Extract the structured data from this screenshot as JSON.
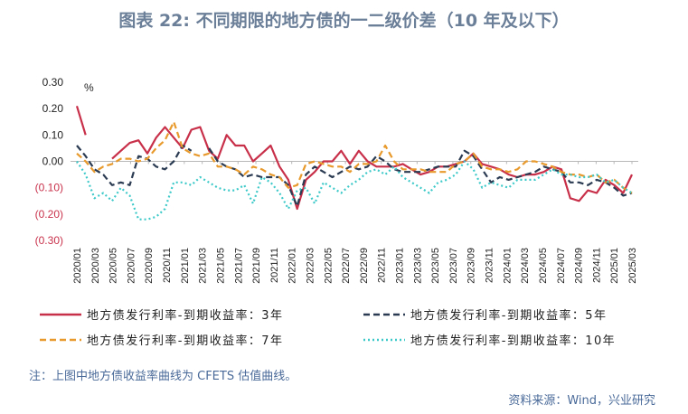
{
  "title": "图表 22: 不同期限的地方债的一二级价差（10 年及以下）",
  "note": "注：上图中地方债收益率曲线为 CFETS 估值曲线。",
  "source": "资料来源：Wind，兴业研究",
  "chart_data": {
    "type": "line",
    "unit": "%",
    "ylim": [
      -0.3,
      0.3
    ],
    "yticks": [
      0.3,
      0.2,
      0.1,
      0.0,
      -0.1,
      -0.2,
      -0.3
    ],
    "ytick_labels": [
      "0.30",
      "0.20",
      "0.10",
      "0.00",
      "(0.10)",
      "(0.20)",
      "(0.30)"
    ],
    "xtick_labels": [
      "2020/01",
      "2020/03",
      "2020/05",
      "2020/07",
      "2020/09",
      "2020/11",
      "2021/01",
      "2021/03",
      "2021/05",
      "2021/07",
      "2021/09",
      "2021/11",
      "2022/01",
      "2022/03",
      "2022/05",
      "2022/07",
      "2022/09",
      "2022/11",
      "2023/01",
      "2023/03",
      "2023/05",
      "2023/07",
      "2023/09",
      "2023/11",
      "2024/01",
      "2024/03",
      "2024/05",
      "2024/07",
      "2024/09",
      "2024/11",
      "2025/01",
      "2025/03"
    ],
    "legend_position": "bottom",
    "series": [
      {
        "name": "地方债发行利率-到期收益率：3年",
        "color": "#c8304a",
        "dash": "solid",
        "values": [
          0.21,
          0.1,
          null,
          null,
          0.01,
          0.04,
          0.07,
          0.08,
          0.03,
          0.09,
          0.13,
          0.09,
          0.05,
          0.12,
          0.13,
          0.04,
          0.01,
          0.1,
          0.06,
          0.06,
          0.0,
          0.03,
          0.06,
          -0.02,
          -0.07,
          -0.18,
          -0.07,
          -0.04,
          0.0,
          0.0,
          0.04,
          -0.01,
          0.04,
          0.0,
          -0.02,
          -0.02,
          -0.02,
          -0.01,
          -0.03,
          -0.05,
          -0.04,
          -0.02,
          -0.02,
          -0.01,
          0.0,
          0.03,
          -0.01,
          -0.02,
          -0.03,
          -0.05,
          -0.06,
          -0.05,
          -0.05,
          -0.04,
          -0.02,
          -0.03,
          -0.14,
          -0.15,
          -0.11,
          -0.12,
          -0.07,
          -0.09,
          -0.12,
          -0.05
        ]
      },
      {
        "name": "地方债发行利率-到期收益率：5年",
        "color": "#2b3b52",
        "dash": "dash",
        "values": [
          0.06,
          0.02,
          -0.03,
          -0.05,
          -0.09,
          -0.08,
          -0.09,
          0.02,
          0.01,
          -0.02,
          -0.03,
          0.0,
          0.06,
          0.04,
          null,
          0.05,
          0.0,
          -0.02,
          -0.03,
          -0.06,
          -0.05,
          -0.06,
          -0.06,
          -0.06,
          -0.09,
          -0.17,
          -0.05,
          -0.02,
          -0.04,
          -0.06,
          -0.04,
          -0.02,
          -0.03,
          -0.02,
          0.02,
          0.0,
          -0.03,
          -0.04,
          -0.04,
          -0.04,
          -0.03,
          -0.02,
          -0.02,
          -0.02,
          0.04,
          0.02,
          -0.03,
          -0.08,
          -0.06,
          -0.07,
          -0.06,
          -0.05,
          -0.04,
          -0.02,
          -0.03,
          -0.04,
          -0.08,
          -0.08,
          -0.09,
          -0.07,
          -0.08,
          -0.1,
          -0.13,
          -0.12
        ]
      },
      {
        "name": "地方债发行利率-到期收益率：7年",
        "color": "#e89a2c",
        "dash": "dash",
        "values": [
          0.03,
          0.0,
          -0.04,
          -0.02,
          -0.01,
          0.01,
          0.01,
          0.0,
          0.01,
          0.05,
          0.08,
          0.15,
          0.05,
          0.03,
          0.02,
          0.03,
          -0.02,
          -0.02,
          -0.03,
          -0.05,
          -0.02,
          -0.03,
          -0.05,
          -0.06,
          -0.1,
          -0.09,
          -0.01,
          0.0,
          -0.01,
          -0.02,
          -0.02,
          -0.04,
          -0.01,
          -0.01,
          0.0,
          0.06,
          0.0,
          -0.03,
          -0.03,
          -0.03,
          -0.04,
          -0.04,
          -0.04,
          -0.01,
          0.0,
          0.03,
          -0.02,
          -0.03,
          -0.03,
          -0.04,
          -0.03,
          0.0,
          0.0,
          -0.01,
          -0.02,
          -0.04,
          -0.05,
          -0.05,
          -0.06,
          -0.05,
          -0.08,
          -0.07,
          -0.1,
          -0.12
        ]
      },
      {
        "name": "地方债发行利率-到期收益率：10年",
        "color": "#3ec9c9",
        "dash": "dot",
        "values": [
          0.0,
          -0.05,
          -0.14,
          -0.12,
          -0.15,
          -0.1,
          -0.13,
          -0.22,
          -0.22,
          -0.21,
          -0.18,
          -0.08,
          -0.08,
          -0.09,
          -0.06,
          -0.08,
          -0.1,
          -0.11,
          -0.11,
          -0.09,
          -0.16,
          -0.06,
          -0.08,
          -0.12,
          -0.18,
          -0.11,
          -0.1,
          -0.16,
          -0.08,
          -0.1,
          -0.12,
          -0.09,
          -0.07,
          -0.04,
          -0.03,
          -0.05,
          -0.02,
          -0.06,
          -0.08,
          -0.1,
          -0.12,
          -0.08,
          -0.07,
          -0.05,
          0.0,
          -0.03,
          -0.1,
          -0.08,
          -0.09,
          -0.1,
          -0.07,
          -0.07,
          -0.07,
          -0.05,
          -0.03,
          -0.05,
          -0.05,
          -0.06,
          -0.06,
          -0.05,
          -0.08,
          -0.07,
          -0.1,
          -0.12
        ]
      }
    ]
  }
}
